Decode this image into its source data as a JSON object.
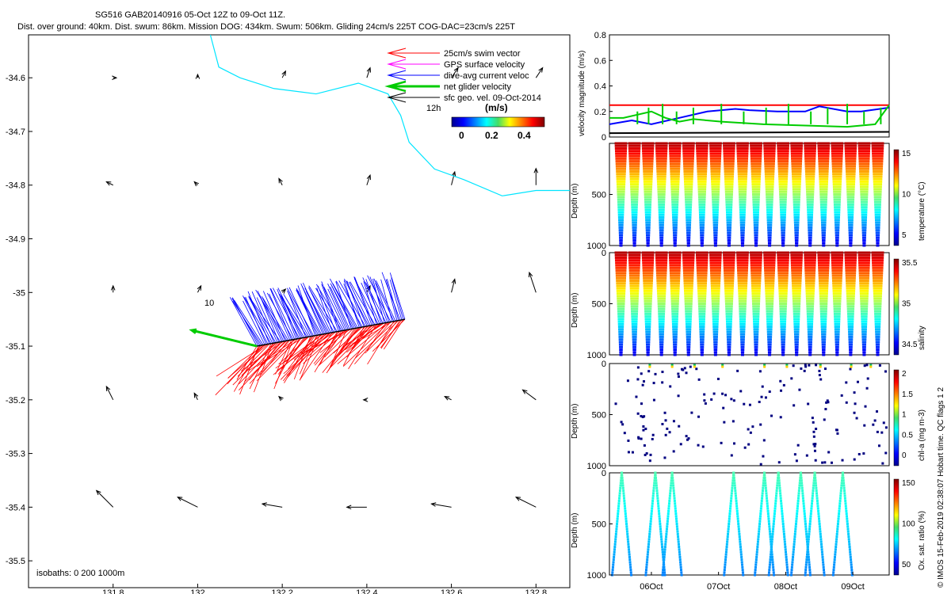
{
  "title": {
    "line1": "SG516 GAB20140916 05-Oct 12Z to 09-Oct 11Z.",
    "line2": "Dist. over ground: 40km. Dist. swum: 86km. Mission DOG: 434km. Swum: 506km. Gliding 24cm/s 225T COG-DAC=23cm/s 225T"
  },
  "credit": "© IMOS 15-Feb-2019 02:38:07 Hobart time. QC flags 1  2",
  "colors": {
    "swim": "#ff0000",
    "gps": "#ff00ff",
    "dac": "#0000ff",
    "net": "#00cc00",
    "geo": "#000000",
    "coast": "#00e5ff"
  },
  "map": {
    "legend": [
      {
        "label": "25cm/s swim vector",
        "color": "#ff0000"
      },
      {
        "label": "GPS surface velocity",
        "color": "#ff00ff"
      },
      {
        "label": "dive-avg current veloc",
        "color": "#0000ff"
      },
      {
        "label": "net glider velocity",
        "color": "#00cc00"
      },
      {
        "label": "sfc geo. vel. 09-Oct-2014",
        "color": "#000000"
      }
    ],
    "legend_12h": "12h",
    "cbar_title": "(m/s)",
    "cbar_ticks": [
      "0",
      "0.2",
      "0.4"
    ],
    "label_10": "10",
    "isobaths": "isobaths: 0   200  1000m"
  },
  "chart_data": [
    {
      "type": "scatter",
      "title": "",
      "xlabel": "",
      "ylabel": "",
      "xlim": [
        131.6,
        132.88
      ],
      "ylim": [
        -35.55,
        -34.52
      ],
      "xticks": [
        "131.8",
        "132",
        "132.2",
        "132.4",
        "132.6",
        "132.8"
      ],
      "yticks": [
        "-34.6",
        "-34.7",
        "-34.8",
        "-34.9",
        "-35",
        "-35.1",
        "-35.2",
        "-35.3",
        "-35.4",
        "-35.5"
      ],
      "track_start": [
        132.14,
        -35.1
      ],
      "track_end": [
        132.49,
        -35.05
      ],
      "coastline": [
        [
          132.03,
          -34.52
        ],
        [
          132.05,
          -34.58
        ],
        [
          132.1,
          -34.6
        ],
        [
          132.18,
          -34.62
        ],
        [
          132.28,
          -34.63
        ],
        [
          132.38,
          -34.61
        ],
        [
          132.45,
          -34.63
        ],
        [
          132.48,
          -34.67
        ],
        [
          132.5,
          -34.72
        ],
        [
          132.56,
          -34.77
        ],
        [
          132.63,
          -34.79
        ],
        [
          132.72,
          -34.82
        ],
        [
          132.8,
          -34.81
        ],
        [
          132.88,
          -34.81
        ]
      ],
      "geo_vectors_mps": [
        [
          131.8,
          -34.6,
          0.01,
          0.0
        ],
        [
          132.0,
          -34.6,
          0.0,
          0.01
        ],
        [
          132.2,
          -34.6,
          0.01,
          0.02
        ],
        [
          132.4,
          -34.6,
          0.01,
          0.03
        ],
        [
          132.6,
          -34.6,
          0.02,
          0.03
        ],
        [
          132.8,
          -34.6,
          0.02,
          0.03
        ],
        [
          131.8,
          -34.8,
          -0.02,
          0.01
        ],
        [
          132.0,
          -34.8,
          -0.01,
          0.01
        ],
        [
          132.2,
          -34.8,
          -0.01,
          0.02
        ],
        [
          132.4,
          -34.8,
          0.01,
          0.03
        ],
        [
          132.6,
          -34.8,
          0.01,
          0.04
        ],
        [
          132.8,
          -34.8,
          0.0,
          0.05
        ],
        [
          131.8,
          -35.0,
          0.0,
          0.02
        ],
        [
          132.0,
          -35.0,
          0.01,
          0.02
        ],
        [
          132.2,
          -35.0,
          0.01,
          0.01
        ],
        [
          132.4,
          -35.0,
          0.01,
          0.02
        ],
        [
          132.6,
          -35.0,
          0.01,
          0.04
        ],
        [
          132.8,
          -35.0,
          -0.02,
          0.06
        ],
        [
          131.8,
          -35.2,
          -0.02,
          0.04
        ],
        [
          132.0,
          -35.2,
          -0.01,
          0.02
        ],
        [
          132.2,
          -35.2,
          -0.01,
          0.01
        ],
        [
          132.4,
          -35.2,
          -0.01,
          0.0
        ],
        [
          132.6,
          -35.2,
          -0.02,
          0.01
        ],
        [
          132.8,
          -35.2,
          -0.04,
          0.03
        ],
        [
          131.8,
          -35.4,
          -0.05,
          0.05
        ],
        [
          132.0,
          -35.4,
          -0.06,
          0.03
        ],
        [
          132.2,
          -35.4,
          -0.06,
          0.01
        ],
        [
          132.4,
          -35.4,
          -0.06,
          0.0
        ],
        [
          132.6,
          -35.4,
          -0.06,
          0.01
        ],
        [
          132.8,
          -35.4,
          -0.06,
          0.03
        ]
      ]
    },
    {
      "type": "line",
      "title": "",
      "xlabel": "",
      "ylabel": "velocity magnitude (m/s)",
      "ylim": [
        0,
        0.8
      ],
      "yticks": [
        "0",
        "0.2",
        "0.4",
        "0.6",
        "0.8"
      ],
      "series": [
        {
          "color": "#ff0000",
          "x": [
            0,
            100
          ],
          "values": [
            0.25,
            0.25
          ]
        },
        {
          "color": "#0000ff",
          "x": [
            0,
            8,
            15,
            25,
            35,
            45,
            50,
            60,
            70,
            75,
            85,
            90,
            100
          ],
          "values": [
            0.1,
            0.13,
            0.1,
            0.15,
            0.2,
            0.22,
            0.21,
            0.2,
            0.2,
            0.24,
            0.2,
            0.2,
            0.23
          ]
        },
        {
          "color": "#00cc00",
          "x": [
            0,
            5,
            15,
            20,
            25,
            30,
            40,
            55,
            70,
            85,
            95,
            100
          ],
          "values": [
            0.15,
            0.15,
            0.2,
            0.15,
            0.12,
            0.14,
            0.12,
            0.1,
            0.09,
            0.08,
            0.1,
            0.25
          ]
        },
        {
          "color": "#000000",
          "x": [
            0,
            100
          ],
          "values": [
            0.03,
            0.04
          ]
        }
      ]
    },
    {
      "type": "scatter",
      "title": "",
      "xlabel": "",
      "ylabel": "Depth (m)",
      "ylim": [
        1000,
        0
      ],
      "yticks": [
        "500",
        "1000"
      ],
      "colorbar_label": "temperature (°C)",
      "colorbar_ticks": [
        "5",
        "10",
        "15"
      ],
      "colormap": "jet-inverted",
      "dives": 20
    },
    {
      "type": "scatter",
      "title": "",
      "xlabel": "",
      "ylabel": "Depth (m)",
      "ylim": [
        1000,
        0
      ],
      "yticks": [
        "0",
        "500",
        "1000"
      ],
      "colorbar_label": "salinity",
      "colorbar_ticks": [
        "34.5",
        "35",
        "35.5"
      ],
      "colormap": "jet-inverted",
      "dives": 20
    },
    {
      "type": "scatter",
      "title": "",
      "xlabel": "",
      "ylabel": "Depth (m)",
      "ylim": [
        1000,
        0
      ],
      "yticks": [
        "0",
        "500",
        "1000"
      ],
      "colorbar_label": "chl-a (mg m-3)",
      "colorbar_ticks": [
        "0",
        "0.5",
        "1",
        "1.5",
        "2"
      ],
      "colormap": "jet",
      "dives": 20
    },
    {
      "type": "scatter",
      "title": "",
      "xlabel": "",
      "ylabel": "Depth (m)",
      "ylim": [
        1000,
        0
      ],
      "yticks": [
        "0",
        "500",
        "1000"
      ],
      "colorbar_label": "Ox. sat. ratio (%)",
      "colorbar_ticks": [
        "50",
        "100",
        "150"
      ],
      "colormap": "jet",
      "dives": 9,
      "xticks": [
        "06Oct",
        "07Oct",
        "08Oct",
        "09Oct"
      ]
    }
  ]
}
